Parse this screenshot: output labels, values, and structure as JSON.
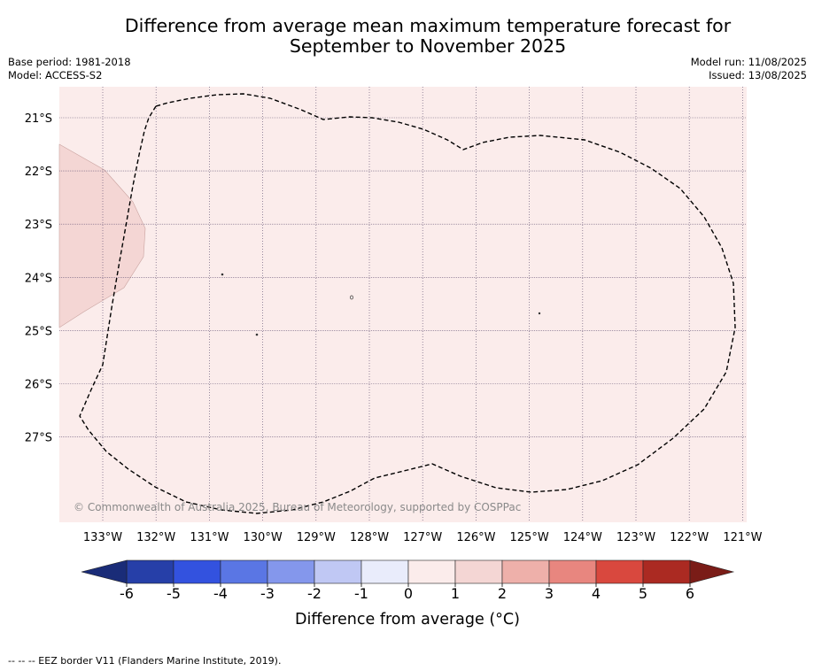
{
  "title_line1": "Difference from average mean maximum temperature forecast for",
  "title_line2": "September to November 2025",
  "meta_left": [
    "Base period: 1981-2018",
    "Model: ACCESS-S2"
  ],
  "meta_right": [
    "Model run: 11/08/2025",
    "Issued: 13/08/2025"
  ],
  "map": {
    "lon_ticks": [
      "133°W",
      "132°W",
      "131°W",
      "130°W",
      "129°W",
      "128°W",
      "127°W",
      "126°W",
      "125°W",
      "124°W",
      "123°W",
      "122°W",
      "121°W"
    ],
    "lat_ticks": [
      "21°S",
      "22°S",
      "23°S",
      "24°S",
      "25°S",
      "26°S",
      "27°S"
    ],
    "background_color": "#fbeceb",
    "anomaly_patch_color": "#f4d6d4",
    "copyright": "© Commonwealth of Australia 2025, Bureau of Meteorology, supported by COSPPac"
  },
  "colorbar": {
    "title": "Difference from average (°C)",
    "tick_labels": [
      "-6",
      "-5",
      "-4",
      "-3",
      "-2",
      "-1",
      "0",
      "1",
      "2",
      "3",
      "4",
      "5",
      "6"
    ],
    "colors": [
      "#263fa8",
      "#3352df",
      "#5a76e4",
      "#8497ec",
      "#c0c8f4",
      "#e9ecfb",
      "#fbeceb",
      "#f4d6d4",
      "#eeb0aa",
      "#e8867f",
      "#d9483e",
      "#ab2a22"
    ],
    "under_color": "#1a2c78",
    "over_color": "#7a1c17"
  },
  "footnote": "-- -- -- EEZ border V11 (Flanders Marine Institute, 2019)."
}
